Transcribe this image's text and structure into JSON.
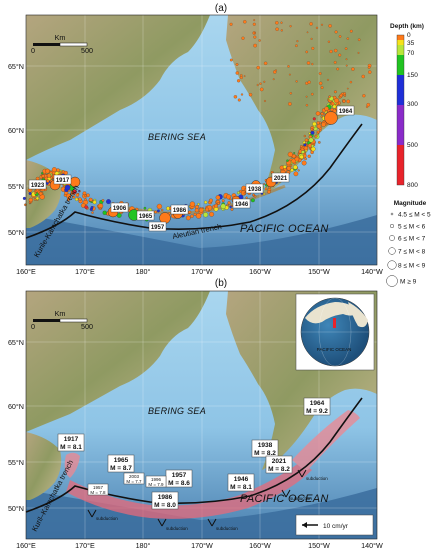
{
  "panel_a": {
    "label": "(a)",
    "lat_ticks": [
      "65°N",
      "60°N",
      "55°N",
      "50°N"
    ],
    "lon_ticks": [
      "160°E",
      "170°E",
      "180°",
      "170°W",
      "160°W",
      "150°W",
      "140°W"
    ],
    "scalebar": {
      "title": "Km",
      "start": "0",
      "end": "500"
    },
    "bering_sea": "BERING SEA",
    "pacific_ocean": "PACIFIC OCEAN",
    "aleutian_trench": "Aleutian trench",
    "kurile_trench": "Kurile-Kamchatka trench",
    "event_years": [
      "1923",
      "1917",
      "1906",
      "1965",
      "1957",
      "1986",
      "1938",
      "2021",
      "1946",
      "1964"
    ],
    "depth_legend": {
      "title": "Depth (km)",
      "ticks": [
        "0",
        "35",
        "70",
        "150",
        "300",
        "500",
        "800"
      ],
      "colors": [
        "#ff7a1a",
        "#f6e21b",
        "#b8e63a",
        "#21c321",
        "#1f2fd8",
        "#8a2bc9",
        "#e8232b"
      ]
    },
    "magnitude_legend": {
      "title": "Magnitude",
      "items": [
        "4.5 ≤ M < 5",
        "5 ≤ M < 6",
        "6 ≤ M < 7",
        "7 ≤ M < 8",
        "8 ≤ M < 9",
        "M ≥ 9"
      ]
    }
  },
  "panel_b": {
    "label": "(b)",
    "lat_ticks": [
      "65°N",
      "60°N",
      "55°N",
      "50°N"
    ],
    "lon_ticks": [
      "160°E",
      "170°E",
      "180°",
      "170°W",
      "160°W",
      "150°W",
      "140°W"
    ],
    "scalebar": {
      "title": "Km",
      "start": "0",
      "end": "500"
    },
    "bering_sea": "BERING SEA",
    "pacific_ocean": "PACIFIC OCEAN",
    "trench": "Kuril–Kamchatka trench",
    "globe_label": "PACIFIC OCEAN",
    "subduction": "subduction",
    "velocity": "10 cm/yr",
    "ruptures": [
      {
        "year": "1917",
        "mag": "M = 8.1"
      },
      {
        "year": "1965",
        "mag": "M = 8.7"
      },
      {
        "year": "1957",
        "mag": "M = 8.6"
      },
      {
        "year": "1986",
        "mag": "M = 8.0"
      },
      {
        "year": "1946",
        "mag": "M = 8.1"
      },
      {
        "year": "1938",
        "mag": "M = 8.2"
      },
      {
        "year": "2021",
        "mag": "M = 8.2"
      },
      {
        "year": "1964",
        "mag": "M = 9.2"
      }
    ],
    "small_ruptures": [
      {
        "year": "2003",
        "mag": "M = 7.7"
      },
      {
        "year": "1996",
        "mag": "M = 7.9"
      },
      {
        "year": "1957",
        "mag": "M = 7.8"
      }
    ]
  }
}
